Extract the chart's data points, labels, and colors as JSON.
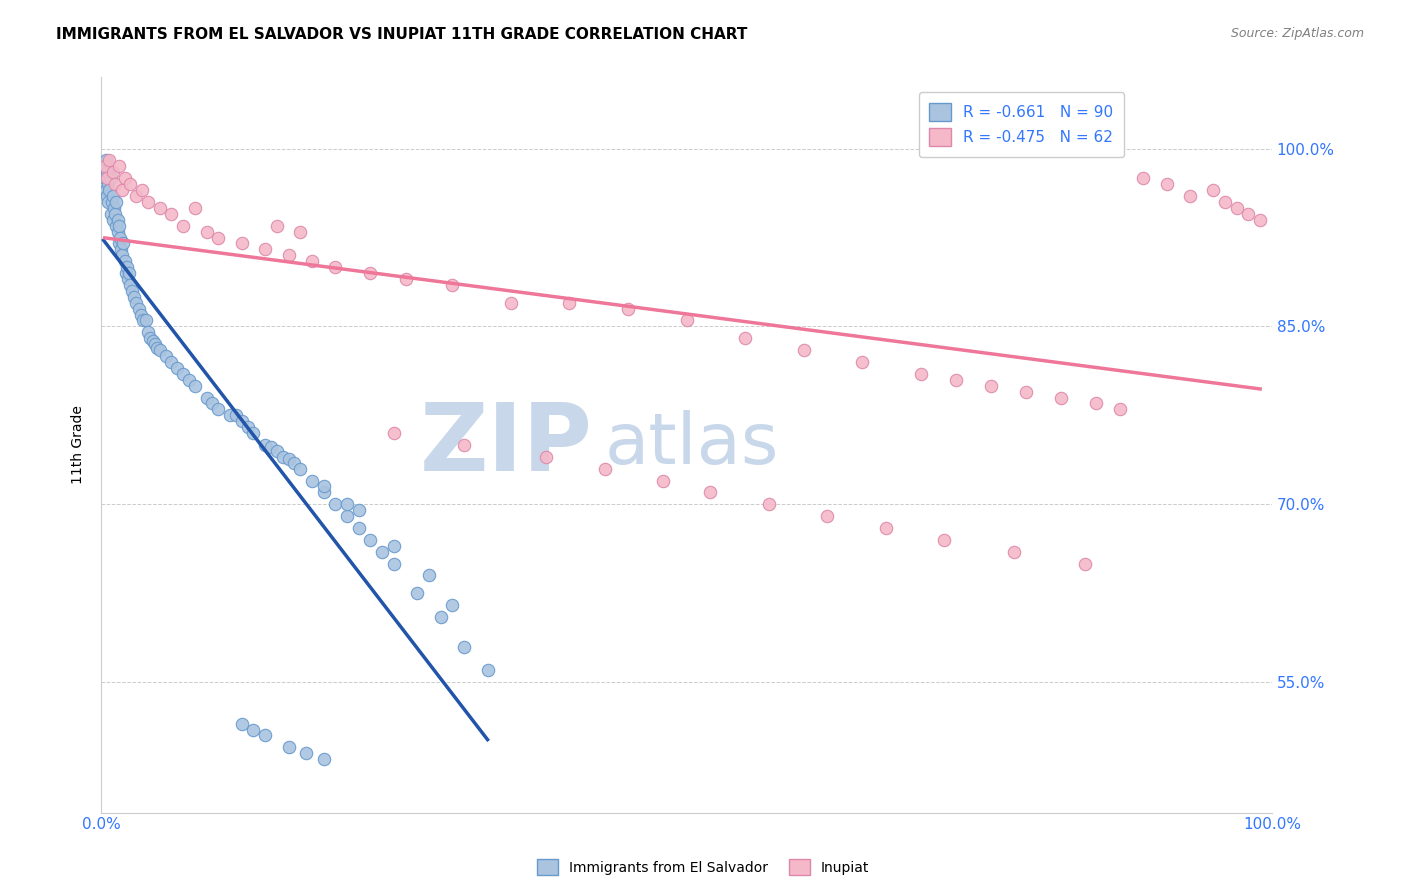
{
  "title": "IMMIGRANTS FROM EL SALVADOR VS INUPIAT 11TH GRADE CORRELATION CHART",
  "source_text": "Source: ZipAtlas.com",
  "ylabel": "11th Grade",
  "xlim": [
    0.0,
    1.0
  ],
  "ylim": [
    0.44,
    1.06
  ],
  "xticks": [
    0.0,
    1.0
  ],
  "xticklabels": [
    "0.0%",
    "100.0%"
  ],
  "yticks": [
    0.55,
    0.7,
    0.85,
    1.0
  ],
  "yticklabels": [
    "55.0%",
    "70.0%",
    "85.0%",
    "100.0%"
  ],
  "blue_color": "#aac4e0",
  "blue_edge_color": "#6699cc",
  "blue_line_color": "#2255aa",
  "pink_color": "#f4b8c8",
  "pink_edge_color": "#dd88aa",
  "pink_line_color": "#ee7799",
  "legend_blue_label": "R = -0.661   N = 90",
  "legend_pink_label": "R = -0.475   N = 62",
  "watermark_zip": "ZIP",
  "watermark_atlas": "atlas",
  "watermark_color": "#c8d8ea",
  "grid_color": "#cccccc",
  "background_color": "#ffffff",
  "tick_color": "#3377ff",
  "title_fontsize": 11,
  "axis_label_fontsize": 10,
  "tick_fontsize": 11,
  "source_fontsize": 9,
  "marker_size": 80,
  "blue_scatter_x": [
    0.002,
    0.003,
    0.004,
    0.004,
    0.005,
    0.005,
    0.006,
    0.006,
    0.007,
    0.008,
    0.008,
    0.009,
    0.01,
    0.01,
    0.011,
    0.012,
    0.013,
    0.013,
    0.014,
    0.014,
    0.015,
    0.015,
    0.016,
    0.017,
    0.018,
    0.019,
    0.02,
    0.021,
    0.022,
    0.023,
    0.024,
    0.025,
    0.026,
    0.028,
    0.03,
    0.032,
    0.034,
    0.036,
    0.038,
    0.04,
    0.042,
    0.044,
    0.046,
    0.048,
    0.05,
    0.055,
    0.06,
    0.065,
    0.07,
    0.075,
    0.08,
    0.09,
    0.095,
    0.1,
    0.11,
    0.115,
    0.12,
    0.125,
    0.13,
    0.14,
    0.145,
    0.15,
    0.155,
    0.16,
    0.165,
    0.17,
    0.18,
    0.19,
    0.2,
    0.21,
    0.22,
    0.23,
    0.24,
    0.25,
    0.27,
    0.29,
    0.31,
    0.33,
    0.19,
    0.21,
    0.22,
    0.25,
    0.28,
    0.3,
    0.12,
    0.13,
    0.14,
    0.16,
    0.175,
    0.19
  ],
  "blue_scatter_y": [
    0.985,
    0.975,
    0.99,
    0.965,
    0.98,
    0.96,
    0.97,
    0.955,
    0.965,
    0.975,
    0.945,
    0.955,
    0.96,
    0.94,
    0.95,
    0.945,
    0.935,
    0.955,
    0.93,
    0.94,
    0.92,
    0.935,
    0.925,
    0.915,
    0.91,
    0.92,
    0.905,
    0.895,
    0.9,
    0.89,
    0.895,
    0.885,
    0.88,
    0.875,
    0.87,
    0.865,
    0.86,
    0.855,
    0.855,
    0.845,
    0.84,
    0.838,
    0.835,
    0.832,
    0.83,
    0.825,
    0.82,
    0.815,
    0.81,
    0.805,
    0.8,
    0.79,
    0.785,
    0.78,
    0.775,
    0.775,
    0.77,
    0.765,
    0.76,
    0.75,
    0.748,
    0.745,
    0.74,
    0.738,
    0.735,
    0.73,
    0.72,
    0.71,
    0.7,
    0.69,
    0.68,
    0.67,
    0.66,
    0.65,
    0.625,
    0.605,
    0.58,
    0.56,
    0.715,
    0.7,
    0.695,
    0.665,
    0.64,
    0.615,
    0.515,
    0.51,
    0.505,
    0.495,
    0.49,
    0.485
  ],
  "pink_scatter_x": [
    0.003,
    0.005,
    0.007,
    0.01,
    0.012,
    0.015,
    0.018,
    0.02,
    0.025,
    0.03,
    0.035,
    0.04,
    0.05,
    0.06,
    0.07,
    0.08,
    0.09,
    0.1,
    0.12,
    0.14,
    0.16,
    0.18,
    0.2,
    0.23,
    0.26,
    0.3,
    0.35,
    0.4,
    0.45,
    0.5,
    0.55,
    0.6,
    0.65,
    0.7,
    0.73,
    0.76,
    0.79,
    0.82,
    0.85,
    0.87,
    0.89,
    0.91,
    0.93,
    0.95,
    0.96,
    0.97,
    0.98,
    0.99,
    0.15,
    0.17,
    0.25,
    0.31,
    0.38,
    0.43,
    0.48,
    0.52,
    0.57,
    0.62,
    0.67,
    0.72,
    0.78,
    0.84
  ],
  "pink_scatter_y": [
    0.985,
    0.975,
    0.99,
    0.98,
    0.97,
    0.985,
    0.965,
    0.975,
    0.97,
    0.96,
    0.965,
    0.955,
    0.95,
    0.945,
    0.935,
    0.95,
    0.93,
    0.925,
    0.92,
    0.915,
    0.91,
    0.905,
    0.9,
    0.895,
    0.89,
    0.885,
    0.87,
    0.87,
    0.865,
    0.855,
    0.84,
    0.83,
    0.82,
    0.81,
    0.805,
    0.8,
    0.795,
    0.79,
    0.785,
    0.78,
    0.975,
    0.97,
    0.96,
    0.965,
    0.955,
    0.95,
    0.945,
    0.94,
    0.935,
    0.93,
    0.76,
    0.75,
    0.74,
    0.73,
    0.72,
    0.71,
    0.7,
    0.69,
    0.68,
    0.67,
    0.66,
    0.65
  ]
}
